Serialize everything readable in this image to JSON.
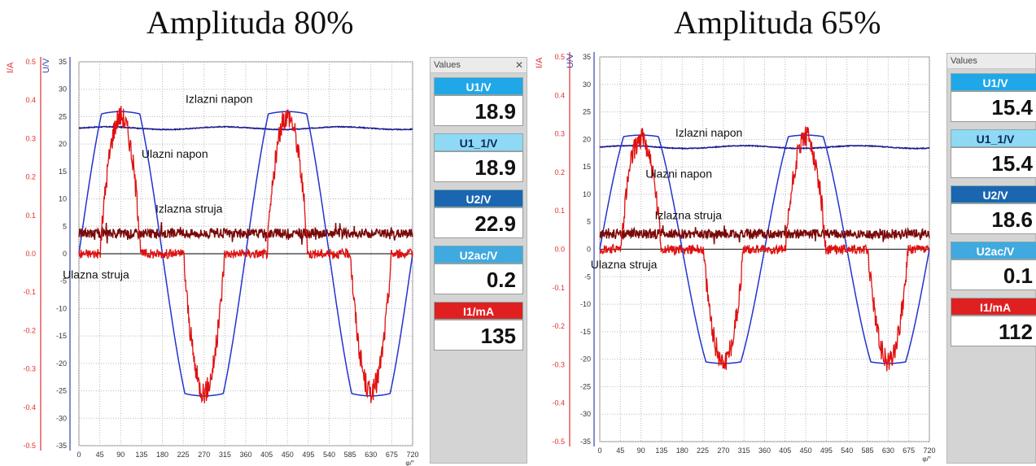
{
  "chart_data": [
    {
      "type": "line",
      "title": "Amplituda 80%",
      "xlabel": "φ/°",
      "ylabel_left_outer": "I/A",
      "ylabel_left_inner": "U/V",
      "x_ticks": [
        "0",
        "45",
        "90",
        "135",
        "180",
        "225",
        "270",
        "315",
        "360",
        "405",
        "450",
        "495",
        "540",
        "585",
        "630",
        "675",
        "720"
      ],
      "u_ticks": [
        "35",
        "30",
        "25",
        "20",
        "15",
        "10",
        "5",
        "0",
        "-5",
        "-10",
        "-15",
        "-20",
        "-25",
        "-30",
        "-35"
      ],
      "i_ticks": [
        "0.5",
        "0.4",
        "0.3",
        "0.2",
        "0.1",
        "0.0",
        "-0.1",
        "-0.2",
        "-0.3",
        "-0.4",
        "-0.5"
      ],
      "xlim": [
        0,
        720
      ],
      "ulim": [
        -35,
        35
      ],
      "ilim": [
        -0.5,
        0.5
      ],
      "series": [
        {
          "name": "Izlazni napon",
          "axis": "U",
          "color": "#1a1a8c",
          "kind": "dc",
          "level": 22.9
        },
        {
          "name": "Ulazni napon",
          "axis": "U",
          "color": "#2233cc",
          "kind": "clippedSine",
          "amp": 34,
          "clip": 25.5
        },
        {
          "name": "Izlazna struja",
          "axis": "I",
          "color": "#7a0a0a",
          "kind": "dcNoise",
          "level": 0.053
        },
        {
          "name": "Ulazna struja",
          "axis": "I",
          "color": "#e01010",
          "kind": "pulses",
          "peak": 0.36,
          "base": 0.0
        }
      ],
      "annotations": [
        {
          "text": "Izlazni napon",
          "x": 230,
          "u": 27.5
        },
        {
          "text": "Ulazni napon",
          "x": 135,
          "u": 17.5
        },
        {
          "text": "Izlazna struja",
          "x": 165,
          "u": 7.5
        },
        {
          "text": "Ulazna struja",
          "x": -35,
          "u": -4.5
        }
      ],
      "values_panel": {
        "header": "Values",
        "close": "✕",
        "items": [
          {
            "label": "U1/V",
            "value": "18.9",
            "color": "#1fa7e8"
          },
          {
            "label": "U1_1/V",
            "value": "18.9",
            "color": "#8fd9f5"
          },
          {
            "label": "U2/V",
            "value": "22.9",
            "color": "#1a66b0"
          },
          {
            "label": "U2ac/V",
            "value": "0.2",
            "color": "#3fa9e0"
          },
          {
            "label": "I1/mA",
            "value": "135",
            "color": "#e02020"
          }
        ]
      }
    },
    {
      "type": "line",
      "title": "Amplituda 65%",
      "xlabel": "φ/°",
      "ylabel_left_outer": "I/A",
      "ylabel_left_inner": "U/V",
      "x_ticks": [
        "0",
        "45",
        "90",
        "135",
        "180",
        "225",
        "270",
        "315",
        "360",
        "405",
        "450",
        "495",
        "540",
        "585",
        "630",
        "675",
        "720"
      ],
      "u_ticks": [
        "35",
        "30",
        "25",
        "20",
        "15",
        "10",
        "5",
        "0",
        "-5",
        "-10",
        "-15",
        "-20",
        "-25",
        "-30",
        "-35"
      ],
      "i_ticks": [
        "0.5",
        "0.4",
        "0.3",
        "0.2",
        "0.1",
        "0.0",
        "-0.1",
        "-0.2",
        "-0.3",
        "-0.4",
        "-0.5"
      ],
      "xlim": [
        0,
        720
      ],
      "ulim": [
        -35,
        35
      ],
      "ilim": [
        -0.5,
        0.5
      ],
      "series": [
        {
          "name": "Izlazni napon",
          "axis": "U",
          "color": "#1a1a8c",
          "kind": "dc",
          "level": 18.6
        },
        {
          "name": "Ulazni napon",
          "axis": "U",
          "color": "#2233cc",
          "kind": "clippedSine",
          "amp": 26,
          "clip": 20.5
        },
        {
          "name": "Izlazna struja",
          "axis": "I",
          "color": "#7a0a0a",
          "kind": "dcNoise",
          "level": 0.04
        },
        {
          "name": "Ulazna struja",
          "axis": "I",
          "color": "#e01010",
          "kind": "pulses",
          "peak": 0.29,
          "base": 0.0
        }
      ],
      "annotations": [
        {
          "text": "Izlazni napon",
          "x": 165,
          "u": 20.5
        },
        {
          "text": "Ulazni napon",
          "x": 100,
          "u": 13
        },
        {
          "text": "Izlazna struja",
          "x": 120,
          "u": 5.5
        },
        {
          "text": "Ulazna struja",
          "x": -20,
          "u": -3.5
        }
      ],
      "values_panel": {
        "header": "Values",
        "close": "",
        "items": [
          {
            "label": "U1/V",
            "value": "15.4",
            "color": "#1fa7e8"
          },
          {
            "label": "U1_1/V",
            "value": "15.4",
            "color": "#8fd9f5"
          },
          {
            "label": "U2/V",
            "value": "18.6",
            "color": "#1a66b0"
          },
          {
            "label": "U2ac/V",
            "value": "0.1",
            "color": "#3fa9e0"
          },
          {
            "label": "I1/mA",
            "value": "112",
            "color": "#e02020"
          }
        ]
      }
    }
  ]
}
